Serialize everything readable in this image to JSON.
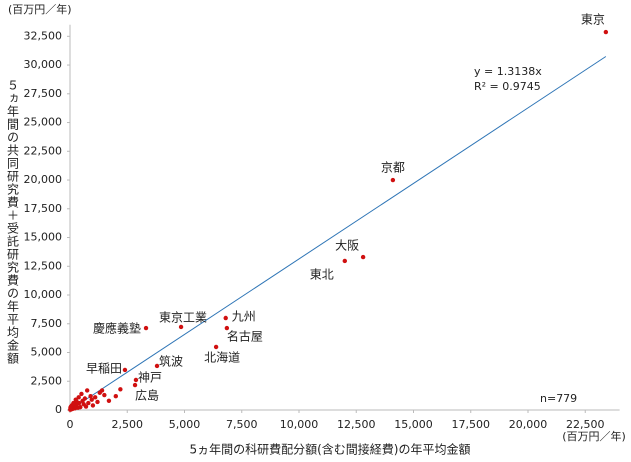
{
  "chart_data": {
    "type": "scatter",
    "y_unit": "(百万円／年)",
    "x_unit": "(百万円／年)",
    "ylabel": "５ヵ年間の共同研究費＋受託研究費の年平均金額",
    "xlabel": "5ヵ年間の科研費配分額(含む間接経費)の年平均金額",
    "annotation": "n=779",
    "equation": "y = 1.3138x",
    "r_squared": "R² = 0.9745",
    "slope": 1.3138,
    "color": "#d01010",
    "trend_color": "#2e75b6",
    "xlim": [
      0,
      24000
    ],
    "ylim": [
      0,
      33500
    ],
    "xticks": [
      0,
      {
        "value": 2500,
        "label": "2,500"
      },
      {
        "value": 5000,
        "label": "5,000"
      },
      {
        "value": 7500,
        "label": "7,500"
      },
      {
        "value": 10000,
        "label": "10,000"
      },
      {
        "value": 12500,
        "label": "12,500"
      },
      {
        "value": 15000,
        "label": "15,000"
      },
      {
        "value": 17500,
        "label": "17,500"
      },
      {
        "value": 20000,
        "label": "20,000"
      },
      {
        "value": 22500,
        "label": "22,500"
      }
    ],
    "yticks": [
      0,
      {
        "value": 2500,
        "label": "2,500"
      },
      {
        "value": 5000,
        "label": "5,000"
      },
      {
        "value": 7500,
        "label": "7,500"
      },
      {
        "value": 10000,
        "label": "10,000"
      },
      {
        "value": 12500,
        "label": "12,500"
      },
      {
        "value": 15000,
        "label": "15,000"
      },
      {
        "value": 17500,
        "label": "17,500"
      },
      {
        "value": 20000,
        "label": "20,000"
      },
      {
        "value": 22500,
        "label": "22,500"
      },
      {
        "value": 25000,
        "label": "25,000"
      },
      {
        "value": 27500,
        "label": "27,500"
      },
      {
        "value": 30000,
        "label": "30,000"
      },
      {
        "value": 32500,
        "label": "32,500"
      }
    ],
    "point_labels": [
      "東京",
      "京都",
      "大阪",
      "東北",
      "九州",
      "名古屋",
      "北海道",
      "東京工業",
      "慶應義塾",
      "筑波",
      "早稲田",
      "神戸",
      "広島",
      null,
      null,
      null,
      null,
      null,
      null,
      null,
      null,
      null,
      null,
      null,
      null,
      null,
      null,
      null,
      null,
      null,
      null,
      null,
      null,
      null,
      null,
      null,
      null,
      null,
      null,
      null,
      null,
      null,
      null,
      null,
      null,
      null,
      null,
      null,
      null,
      null,
      null
    ],
    "x": [
      23400,
      14100,
      12800,
      12000,
      6800,
      6850,
      6380,
      4850,
      3320,
      3800,
      2400,
      2880,
      2840,
      1700,
      1500,
      1300,
      1200,
      1100,
      1000,
      950,
      900,
      800,
      750,
      700,
      650,
      600,
      550,
      500,
      450,
      400,
      380,
      350,
      300,
      280,
      250,
      220,
      200,
      180,
      150,
      120,
      100,
      80,
      60,
      50,
      40,
      30,
      20,
      10,
      1400,
      2000,
      2200
    ],
    "y": [
      32870,
      20000,
      13300,
      12960,
      8000,
      7130,
      5480,
      7220,
      7130,
      3830,
      3480,
      2610,
      2170,
      800,
      1300,
      1500,
      700,
      1100,
      400,
      900,
      1200,
      600,
      1700,
      300,
      1000,
      500,
      800,
      1400,
      250,
      600,
      1100,
      200,
      700,
      400,
      900,
      150,
      500,
      300,
      600,
      100,
      250,
      400,
      150,
      50,
      300,
      100,
      200,
      30,
      1700,
      1200,
      1800
    ]
  }
}
